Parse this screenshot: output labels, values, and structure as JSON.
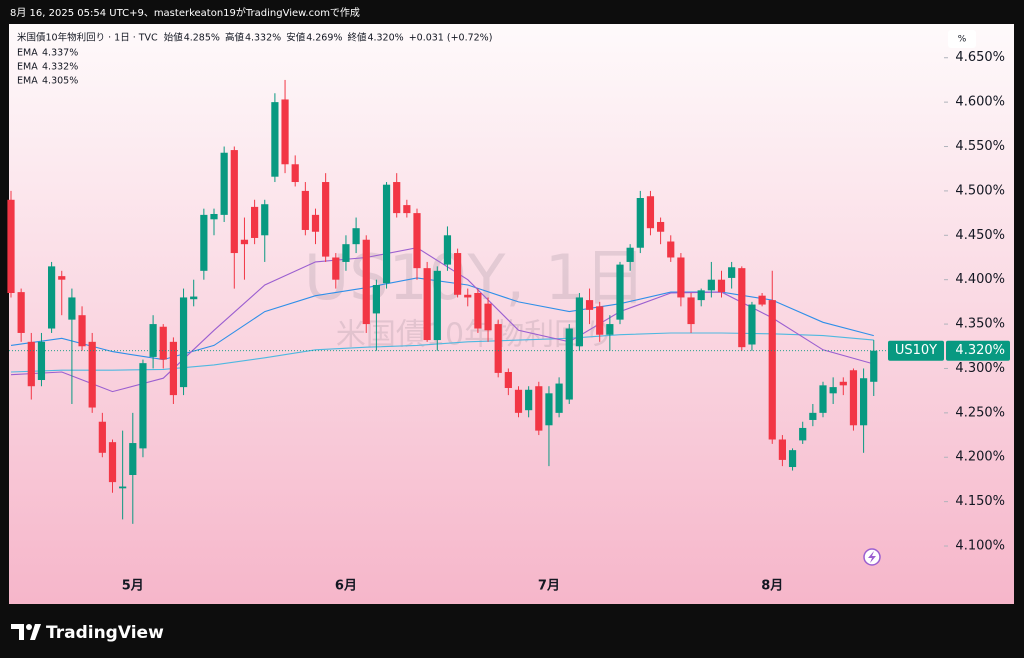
{
  "caption": "8月 16, 2025 05:54 UTC+9、masterkeaton19がTradingView.comで作成",
  "brand": "TradingView",
  "chart_data": {
    "type": "candlestick",
    "symbol": "US10Y",
    "watermark": "US10Y, 1日",
    "watermark_name": "米国債10年物利回り",
    "unit_button": "%",
    "header": {
      "title": "米国債10年物利回り · 1日 · TVC",
      "items": [
        {
          "label": "始値",
          "value": "4.285%"
        },
        {
          "label": "高値",
          "value": "4.332%"
        },
        {
          "label": "安値",
          "value": "4.269%"
        },
        {
          "label": "終値",
          "value": "4.320%"
        }
      ],
      "change": "+0.031 (+0.72%)"
    },
    "up_color": "#089981",
    "down_color": "#f23645",
    "categories": [
      null,
      null,
      null,
      null,
      null,
      null,
      null,
      null,
      null,
      null,
      null,
      null,
      "5月",
      null,
      null,
      null,
      null,
      null,
      null,
      null,
      null,
      null,
      null,
      null,
      null,
      null,
      null,
      null,
      null,
      null,
      null,
      null,
      null,
      "6月",
      null,
      null,
      null,
      null,
      null,
      null,
      null,
      null,
      null,
      null,
      null,
      null,
      null,
      null,
      null,
      null,
      null,
      null,
      null,
      "7月",
      null,
      null,
      null,
      null,
      null,
      null,
      null,
      null,
      null,
      null,
      null,
      null,
      null,
      null,
      null,
      null,
      null,
      null,
      null,
      null,
      null,
      "8月",
      null,
      null,
      null,
      null,
      null,
      null,
      null,
      null,
      null,
      null
    ],
    "open": [
      4.49,
      4.386,
      4.33,
      4.287,
      4.345,
      4.404,
      4.355,
      4.36,
      4.33,
      4.24,
      4.217,
      4.165,
      4.18,
      4.21,
      4.313,
      4.347,
      4.33,
      4.279,
      4.378,
      4.41,
      4.468,
      4.473,
      4.546,
      4.445,
      4.482,
      4.45,
      4.516,
      4.603,
      4.53,
      4.5,
      4.473,
      4.51,
      4.425,
      4.42,
      4.44,
      4.445,
      4.362,
      4.396,
      4.51,
      4.484,
      4.475,
      4.413,
      4.332,
      4.417,
      4.43,
      4.383,
      4.385,
      4.373,
      4.35,
      4.296,
      4.276,
      4.253,
      4.28,
      4.236,
      4.25,
      4.265,
      4.325,
      4.377,
      4.37,
      4.338,
      4.355,
      4.42,
      4.436,
      4.494,
      4.465,
      4.443,
      4.425,
      4.38,
      4.377,
      4.388,
      4.4,
      4.402,
      4.413,
      4.327,
      4.382,
      4.377,
      4.22,
      4.189,
      4.219,
      4.242,
      4.25,
      4.272,
      4.285,
      4.298,
      4.236,
      4.285
    ],
    "high": [
      4.5,
      4.39,
      4.34,
      4.34,
      4.42,
      4.41,
      4.39,
      4.37,
      4.34,
      4.25,
      4.22,
      4.23,
      4.25,
      4.31,
      4.36,
      4.35,
      4.335,
      4.39,
      4.4,
      4.48,
      4.48,
      4.55,
      4.55,
      4.47,
      4.49,
      4.49,
      4.61,
      4.625,
      4.54,
      4.51,
      4.48,
      4.52,
      4.43,
      4.45,
      4.47,
      4.45,
      4.4,
      4.51,
      4.52,
      4.49,
      4.48,
      4.42,
      4.415,
      4.46,
      4.435,
      4.39,
      4.39,
      4.38,
      4.355,
      4.3,
      4.28,
      4.28,
      4.285,
      4.28,
      4.29,
      4.35,
      4.385,
      4.39,
      4.375,
      4.36,
      4.42,
      4.44,
      4.5,
      4.5,
      4.47,
      4.45,
      4.43,
      4.385,
      4.39,
      4.42,
      4.41,
      4.42,
      4.415,
      4.375,
      4.385,
      4.41,
      4.225,
      4.21,
      4.24,
      4.26,
      4.285,
      4.29,
      4.29,
      4.3,
      4.3,
      4.332
    ],
    "low": [
      4.38,
      4.33,
      4.265,
      4.28,
      4.34,
      4.36,
      4.26,
      4.32,
      4.25,
      4.2,
      4.16,
      4.13,
      4.125,
      4.2,
      4.3,
      4.3,
      4.26,
      4.27,
      4.37,
      4.4,
      4.45,
      4.465,
      4.39,
      4.4,
      4.44,
      4.42,
      4.51,
      4.52,
      4.505,
      4.45,
      4.44,
      4.42,
      4.39,
      4.41,
      4.43,
      4.34,
      4.32,
      4.39,
      4.47,
      4.47,
      4.4,
      4.33,
      4.32,
      4.41,
      4.38,
      4.37,
      4.34,
      4.33,
      4.29,
      4.27,
      4.245,
      4.245,
      4.225,
      4.19,
      4.245,
      4.26,
      4.32,
      4.35,
      4.33,
      4.32,
      4.35,
      4.41,
      4.43,
      4.45,
      4.44,
      4.42,
      4.37,
      4.34,
      4.37,
      4.38,
      4.38,
      4.39,
      4.32,
      4.32,
      4.37,
      4.215,
      4.19,
      4.185,
      4.215,
      4.235,
      4.245,
      4.26,
      4.27,
      4.23,
      4.205,
      4.269
    ],
    "close": [
      4.385,
      4.34,
      4.28,
      4.33,
      4.415,
      4.4,
      4.38,
      4.325,
      4.256,
      4.205,
      4.172,
      4.167,
      4.216,
      4.306,
      4.35,
      4.31,
      4.27,
      4.38,
      4.381,
      4.473,
      4.474,
      4.543,
      4.43,
      4.44,
      4.447,
      4.485,
      4.6,
      4.53,
      4.51,
      4.456,
      4.454,
      4.426,
      4.4,
      4.44,
      4.458,
      4.35,
      4.394,
      4.507,
      4.475,
      4.475,
      4.413,
      4.332,
      4.41,
      4.45,
      4.383,
      4.38,
      4.345,
      4.343,
      4.295,
      4.278,
      4.25,
      4.276,
      4.23,
      4.272,
      4.283,
      4.345,
      4.38,
      4.366,
      4.338,
      4.35,
      4.417,
      4.436,
      4.492,
      4.458,
      4.454,
      4.425,
      4.38,
      4.35,
      4.388,
      4.4,
      4.386,
      4.414,
      4.324,
      4.372,
      4.372,
      4.22,
      4.197,
      4.208,
      4.233,
      4.25,
      4.281,
      4.279,
      4.281,
      4.236,
      4.289,
      4.32
    ],
    "series": [
      {
        "name": "EMA",
        "color": "#2f8fe8",
        "value_label": "4.337%",
        "x": [
          0,
          5,
          10,
          15,
          20,
          25,
          30,
          35,
          40,
          45,
          50,
          55,
          60,
          65,
          70,
          75,
          80,
          85
        ],
        "values": [
          4.326,
          4.334,
          4.319,
          4.31,
          4.326,
          4.364,
          4.382,
          4.391,
          4.402,
          4.394,
          4.375,
          4.364,
          4.373,
          4.386,
          4.386,
          4.377,
          4.352,
          4.337
        ]
      },
      {
        "name": "EMA",
        "color": "#4fb8e0",
        "value_label": "4.332%",
        "x": [
          0,
          5,
          10,
          15,
          20,
          25,
          30,
          35,
          40,
          45,
          50,
          55,
          60,
          65,
          70,
          75,
          80,
          85
        ],
        "values": [
          4.296,
          4.298,
          4.298,
          4.299,
          4.304,
          4.312,
          4.321,
          4.324,
          4.326,
          4.33,
          4.332,
          4.334,
          4.338,
          4.34,
          4.34,
          4.339,
          4.337,
          4.332
        ]
      },
      {
        "name": "EMA",
        "color": "#9b5fd0",
        "value_label": "4.305%",
        "x": [
          0,
          5,
          10,
          15,
          20,
          25,
          30,
          35,
          40,
          45,
          50,
          55,
          60,
          65,
          70,
          75,
          80,
          85
        ],
        "values": [
          4.293,
          4.296,
          4.274,
          4.289,
          4.343,
          4.394,
          4.42,
          4.425,
          4.436,
          4.4,
          4.343,
          4.33,
          4.364,
          4.385,
          4.386,
          4.357,
          4.321,
          4.305
        ]
      }
    ],
    "last_price": {
      "value": 4.32,
      "label": "4.320%"
    },
    "ylim": [
      4.073,
      4.688
    ],
    "yticks": [
      {
        "value": 4.1,
        "label": "4.100%"
      },
      {
        "value": 4.15,
        "label": "4.150%"
      },
      {
        "value": 4.2,
        "label": "4.200%"
      },
      {
        "value": 4.25,
        "label": "4.250%"
      },
      {
        "value": 4.3,
        "label": "4.300%"
      },
      {
        "value": 4.35,
        "label": "4.350%"
      },
      {
        "value": 4.4,
        "label": "4.400%"
      },
      {
        "value": 4.45,
        "label": "4.450%"
      },
      {
        "value": 4.5,
        "label": "4.500%"
      },
      {
        "value": 4.55,
        "label": "4.550%"
      },
      {
        "value": 4.6,
        "label": "4.600%"
      },
      {
        "value": 4.65,
        "label": "4.650%"
      }
    ]
  }
}
